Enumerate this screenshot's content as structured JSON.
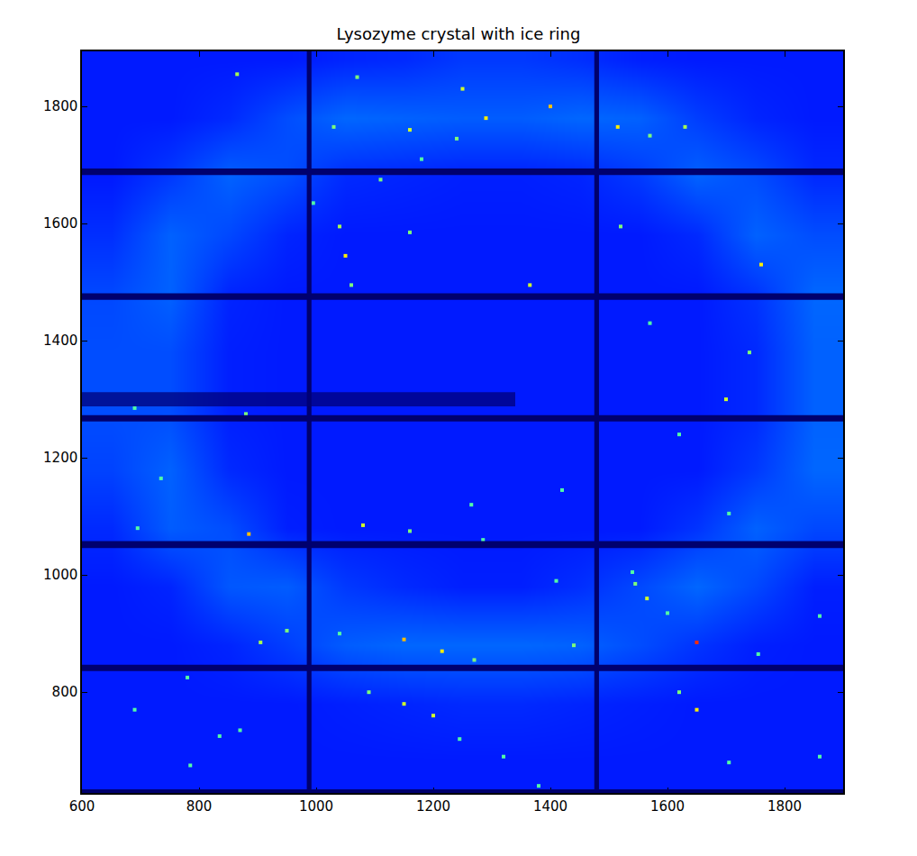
{
  "chart_data": {
    "type": "heatmap",
    "title": "Lysozyme crystal with ice ring",
    "xlim": [
      600,
      1900
    ],
    "ylim": [
      628,
      1894
    ],
    "xticks": [
      600,
      800,
      1000,
      1200,
      1400,
      1600,
      1800
    ],
    "yticks": [
      800,
      1000,
      1200,
      1400,
      1600,
      1800
    ],
    "grid": false,
    "zlim": [
      0,
      20
    ],
    "x": [
      650,
      750,
      850,
      950,
      1050,
      1150,
      1250,
      1350,
      1450,
      1550,
      1650,
      1750,
      1850
    ],
    "y": [
      680,
      780,
      880,
      980,
      1080,
      1180,
      1280,
      1380,
      1480,
      1580,
      1680,
      1780,
      1880
    ],
    "z": [
      [
        3.0,
        3.0,
        3.0,
        3.0,
        3.0,
        3.0,
        3.0,
        3.0,
        3.0,
        3.0,
        3.0,
        3.0,
        3.0
      ],
      [
        3.0,
        3.0,
        3.0,
        3.0,
        3.1,
        3.2,
        3.3,
        3.3,
        3.2,
        3.1,
        3.0,
        3.0,
        3.0
      ],
      [
        3.0,
        3.0,
        3.2,
        3.7,
        4.3,
        4.5,
        4.5,
        4.5,
        4.4,
        4.0,
        3.5,
        3.1,
        3.0
      ],
      [
        3.0,
        3.2,
        4.2,
        4.3,
        3.6,
        3.3,
        3.1,
        3.1,
        3.4,
        3.9,
        4.5,
        3.9,
        3.1
      ],
      [
        3.3,
        4.3,
        4.0,
        3.1,
        3.0,
        3.0,
        3.0,
        3.0,
        3.0,
        3.0,
        3.5,
        4.4,
        3.9
      ],
      [
        3.8,
        4.4,
        3.3,
        3.0,
        3.0,
        3.0,
        3.0,
        3.0,
        3.0,
        3.0,
        3.0,
        3.6,
        4.5
      ],
      [
        4.0,
        4.0,
        3.1,
        3.0,
        3.0,
        3.0,
        3.0,
        3.0,
        3.0,
        3.0,
        3.0,
        3.3,
        4.4
      ],
      [
        4.0,
        4.0,
        3.1,
        3.0,
        3.0,
        3.0,
        3.0,
        3.0,
        3.0,
        3.0,
        3.0,
        3.3,
        4.4
      ],
      [
        3.9,
        4.4,
        3.2,
        3.0,
        3.0,
        3.0,
        3.0,
        3.0,
        3.0,
        3.0,
        3.0,
        3.5,
        4.5
      ],
      [
        3.4,
        4.4,
        3.9,
        3.2,
        3.0,
        3.0,
        3.0,
        3.0,
        3.0,
        3.0,
        3.3,
        4.4,
        4.0
      ],
      [
        3.0,
        3.6,
        4.4,
        4.0,
        3.3,
        3.2,
        3.1,
        3.1,
        3.2,
        3.6,
        4.4,
        4.0,
        3.3
      ],
      [
        3.0,
        3.0,
        3.3,
        4.0,
        4.5,
        4.4,
        4.3,
        4.3,
        4.5,
        4.4,
        3.7,
        3.2,
        3.0
      ],
      [
        3.0,
        3.0,
        3.0,
        3.0,
        3.2,
        3.3,
        3.6,
        3.6,
        3.4,
        3.1,
        3.0,
        3.0,
        3.0
      ]
    ],
    "spots": {
      "x": [
        865,
        1070,
        1250,
        1290,
        1400,
        1160,
        1515,
        1630,
        1240,
        1570,
        1030,
        1180,
        1110,
        995,
        1040,
        1160,
        1520,
        1050,
        1760,
        1365,
        1060,
        1570,
        1700,
        1740,
        880,
        690,
        735,
        1620,
        1265,
        1080,
        1160,
        1705,
        885,
        695,
        1545,
        1565,
        1650,
        1600,
        1150,
        1215,
        905,
        950,
        1040,
        1440,
        1270,
        1150,
        1200,
        1650,
        1090,
        1620,
        1320,
        1380,
        780,
        835,
        785,
        690,
        870,
        1245,
        1705,
        1755,
        1860,
        1860,
        1410,
        1540,
        1420,
        1285
      ],
      "y": [
        1855,
        1850,
        1830,
        1780,
        1800,
        1760,
        1765,
        1765,
        1745,
        1750,
        1765,
        1710,
        1675,
        1635,
        1595,
        1585,
        1595,
        1545,
        1530,
        1495,
        1495,
        1430,
        1300,
        1380,
        1275,
        1285,
        1165,
        1240,
        1120,
        1085,
        1075,
        1105,
        1070,
        1080,
        985,
        960,
        885,
        935,
        890,
        870,
        885,
        905,
        900,
        880,
        855,
        780,
        760,
        770,
        800,
        800,
        690,
        640,
        825,
        725,
        675,
        770,
        735,
        720,
        680,
        865,
        930,
        690,
        990,
        1005,
        1145,
        1060
      ],
      "values": [
        11,
        10,
        12,
        13,
        14,
        12,
        13,
        11,
        10,
        10,
        10,
        9,
        10,
        9,
        11,
        10,
        10,
        13,
        13,
        12,
        10,
        9,
        12,
        10,
        10,
        9,
        9,
        9,
        9,
        12,
        10,
        9,
        14,
        9,
        10,
        12,
        17,
        9,
        14,
        13,
        11,
        10,
        9,
        10,
        10,
        12,
        12,
        13,
        10,
        10,
        9,
        9,
        9,
        9,
        9,
        9,
        9,
        9,
        9,
        9,
        9,
        9,
        9,
        9,
        9,
        9
      ]
    },
    "panel_gaps": {
      "x": [
        [
          984,
          992
        ],
        [
          1475,
          1483
        ]
      ],
      "y": [
        [
          626,
          634
        ],
        [
          836,
          847
        ],
        [
          1046,
          1058
        ],
        [
          1262,
          1273
        ],
        [
          1470,
          1481
        ],
        [
          1683,
          1694
        ]
      ]
    },
    "beamstop": {
      "x": [
        600,
        1340
      ],
      "y": [
        1288,
        1312
      ]
    }
  }
}
